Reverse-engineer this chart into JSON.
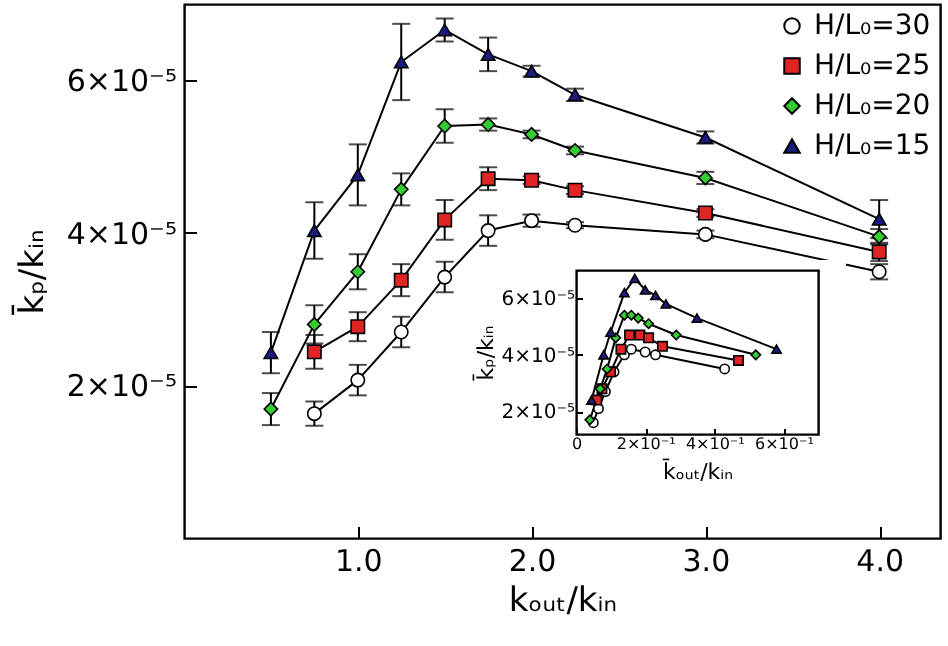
{
  "chart_data": [
    {
      "type": "line",
      "xlabel": "kₒᵤₜ/kᵢₙ",
      "ylabel": "k̄ₚ/kᵢₙ",
      "xlim": [
        0,
        4.35
      ],
      "ylim": [
        0,
        7e-05
      ],
      "xticks": [
        {
          "value": 1,
          "label": "1.0"
        },
        {
          "value": 2,
          "label": "2.0"
        },
        {
          "value": 3,
          "label": "3.0"
        },
        {
          "value": 4,
          "label": "4.0"
        }
      ],
      "yticks": [
        {
          "value": 2e-05,
          "label": "2×10⁻⁵"
        },
        {
          "value": 4e-05,
          "label": "4×10⁻⁵"
        },
        {
          "value": 6e-05,
          "label": "6×10⁻⁵"
        }
      ],
      "legend": "top right",
      "grid": false,
      "series": [
        {
          "name": "H/L₀=30",
          "color": "#ffffff",
          "marker": "circle",
          "x": [
            0.75,
            1,
            1.25,
            1.5,
            1.75,
            2,
            2.25,
            3,
            4
          ],
          "values": [
            1.63e-05,
            2.07e-05,
            2.7e-05,
            3.42e-05,
            4.03e-05,
            4.16e-05,
            4.1e-05,
            3.98e-05,
            3.49e-05
          ],
          "errors": [
            1.6e-06,
            2e-06,
            2e-06,
            2e-06,
            2e-06,
            8e-07,
            4e-07,
            5e-07,
            1e-06
          ]
        },
        {
          "name": "H/L₀=25",
          "color": "#e02424",
          "marker": "square",
          "x": [
            0.75,
            1,
            1.25,
            1.5,
            1.75,
            2,
            2.25,
            3,
            4
          ],
          "values": [
            2.44e-05,
            2.77e-05,
            3.38e-05,
            4.17e-05,
            4.71e-05,
            4.69e-05,
            4.56e-05,
            4.26e-05,
            3.75e-05
          ],
          "errors": [
            2.2e-06,
            1.9e-06,
            2.1e-06,
            2.6e-06,
            1.5e-06,
            5e-07,
            5e-07,
            5e-07,
            1.2e-06
          ]
        },
        {
          "name": "H/L₀=20",
          "color": "#33cc33",
          "marker": "diamond",
          "x": [
            0.5,
            0.75,
            1,
            1.25,
            1.5,
            1.75,
            2,
            2.25,
            3,
            4
          ],
          "values": [
            1.69e-05,
            2.8e-05,
            3.49e-05,
            4.57e-05,
            5.4e-05,
            5.42e-05,
            5.29e-05,
            5.08e-05,
            4.72e-05,
            3.95e-05
          ],
          "errors": [
            2.1e-06,
            2.5e-06,
            2.3e-06,
            2.1e-06,
            2.2e-06,
            8e-07,
            5e-07,
            5e-07,
            8e-07,
            1e-06
          ]
        },
        {
          "name": "H/L₀=15",
          "color": "#1a1a80",
          "marker": "triangle",
          "x": [
            0.5,
            0.75,
            1,
            1.25,
            1.5,
            1.75,
            2,
            2.25,
            3,
            4
          ],
          "values": [
            2.43e-05,
            4.03e-05,
            4.76e-05,
            6.24e-05,
            6.66e-05,
            6.34e-05,
            6.12e-05,
            5.81e-05,
            5.25e-05,
            4.18e-05
          ],
          "errors": [
            2.7e-06,
            3.7e-06,
            4e-06,
            5e-06,
            1.5e-06,
            2.2e-06,
            7e-07,
            8e-07,
            8e-07,
            2.5e-06
          ]
        }
      ]
    },
    {
      "type": "line",
      "xlabel": "k̄ₒᵤₜ/kᵢₙ",
      "ylabel": "k̄ₚ/kᵢₙ",
      "xlim": [
        0,
        0.7
      ],
      "ylim": [
        1.2e-05,
        7e-05
      ],
      "xticks": [
        {
          "value": 0,
          "label": "0"
        },
        {
          "value": 0.2,
          "label": "2×10⁻¹"
        },
        {
          "value": 0.4,
          "label": "4×10⁻¹"
        },
        {
          "value": 0.6,
          "label": "6×10⁻¹"
        }
      ],
      "yticks": [
        {
          "value": 2e-05,
          "label": "2×10⁻⁵"
        },
        {
          "value": 4e-05,
          "label": "4×10⁻⁵"
        },
        {
          "value": 6e-05,
          "label": "6×10⁻⁵"
        }
      ],
      "grid": false,
      "series": [
        {
          "color": "#ffffff",
          "marker": "circle",
          "x": [
            0.05,
            0.065,
            0.085,
            0.11,
            0.14,
            0.16,
            0.2,
            0.23,
            0.43
          ],
          "values": [
            1.6e-05,
            2.1e-05,
            2.7e-05,
            3.4e-05,
            4e-05,
            4.2e-05,
            4.1e-05,
            4e-05,
            3.5e-05
          ]
        },
        {
          "color": "#e02424",
          "marker": "square",
          "x": [
            0.06,
            0.075,
            0.1,
            0.13,
            0.155,
            0.185,
            0.21,
            0.25,
            0.47
          ],
          "values": [
            2.4e-05,
            2.8e-05,
            3.4e-05,
            4.2e-05,
            4.7e-05,
            4.7e-05,
            4.6e-05,
            4.3e-05,
            3.8e-05
          ]
        },
        {
          "color": "#33cc33",
          "marker": "diamond",
          "x": [
            0.04,
            0.07,
            0.09,
            0.115,
            0.14,
            0.16,
            0.18,
            0.21,
            0.29,
            0.52
          ],
          "values": [
            1.7e-05,
            2.8e-05,
            3.5e-05,
            4.6e-05,
            5.4e-05,
            5.4e-05,
            5.3e-05,
            5.1e-05,
            4.7e-05,
            4e-05
          ]
        },
        {
          "color": "#1a1a80",
          "marker": "triangle",
          "x": [
            0.045,
            0.08,
            0.1,
            0.14,
            0.17,
            0.2,
            0.23,
            0.26,
            0.35,
            0.58
          ],
          "values": [
            2.4e-05,
            4e-05,
            4.8e-05,
            6.2e-05,
            6.7e-05,
            6.3e-05,
            6.1e-05,
            5.8e-05,
            5.3e-05,
            4.2e-05
          ]
        }
      ]
    }
  ]
}
